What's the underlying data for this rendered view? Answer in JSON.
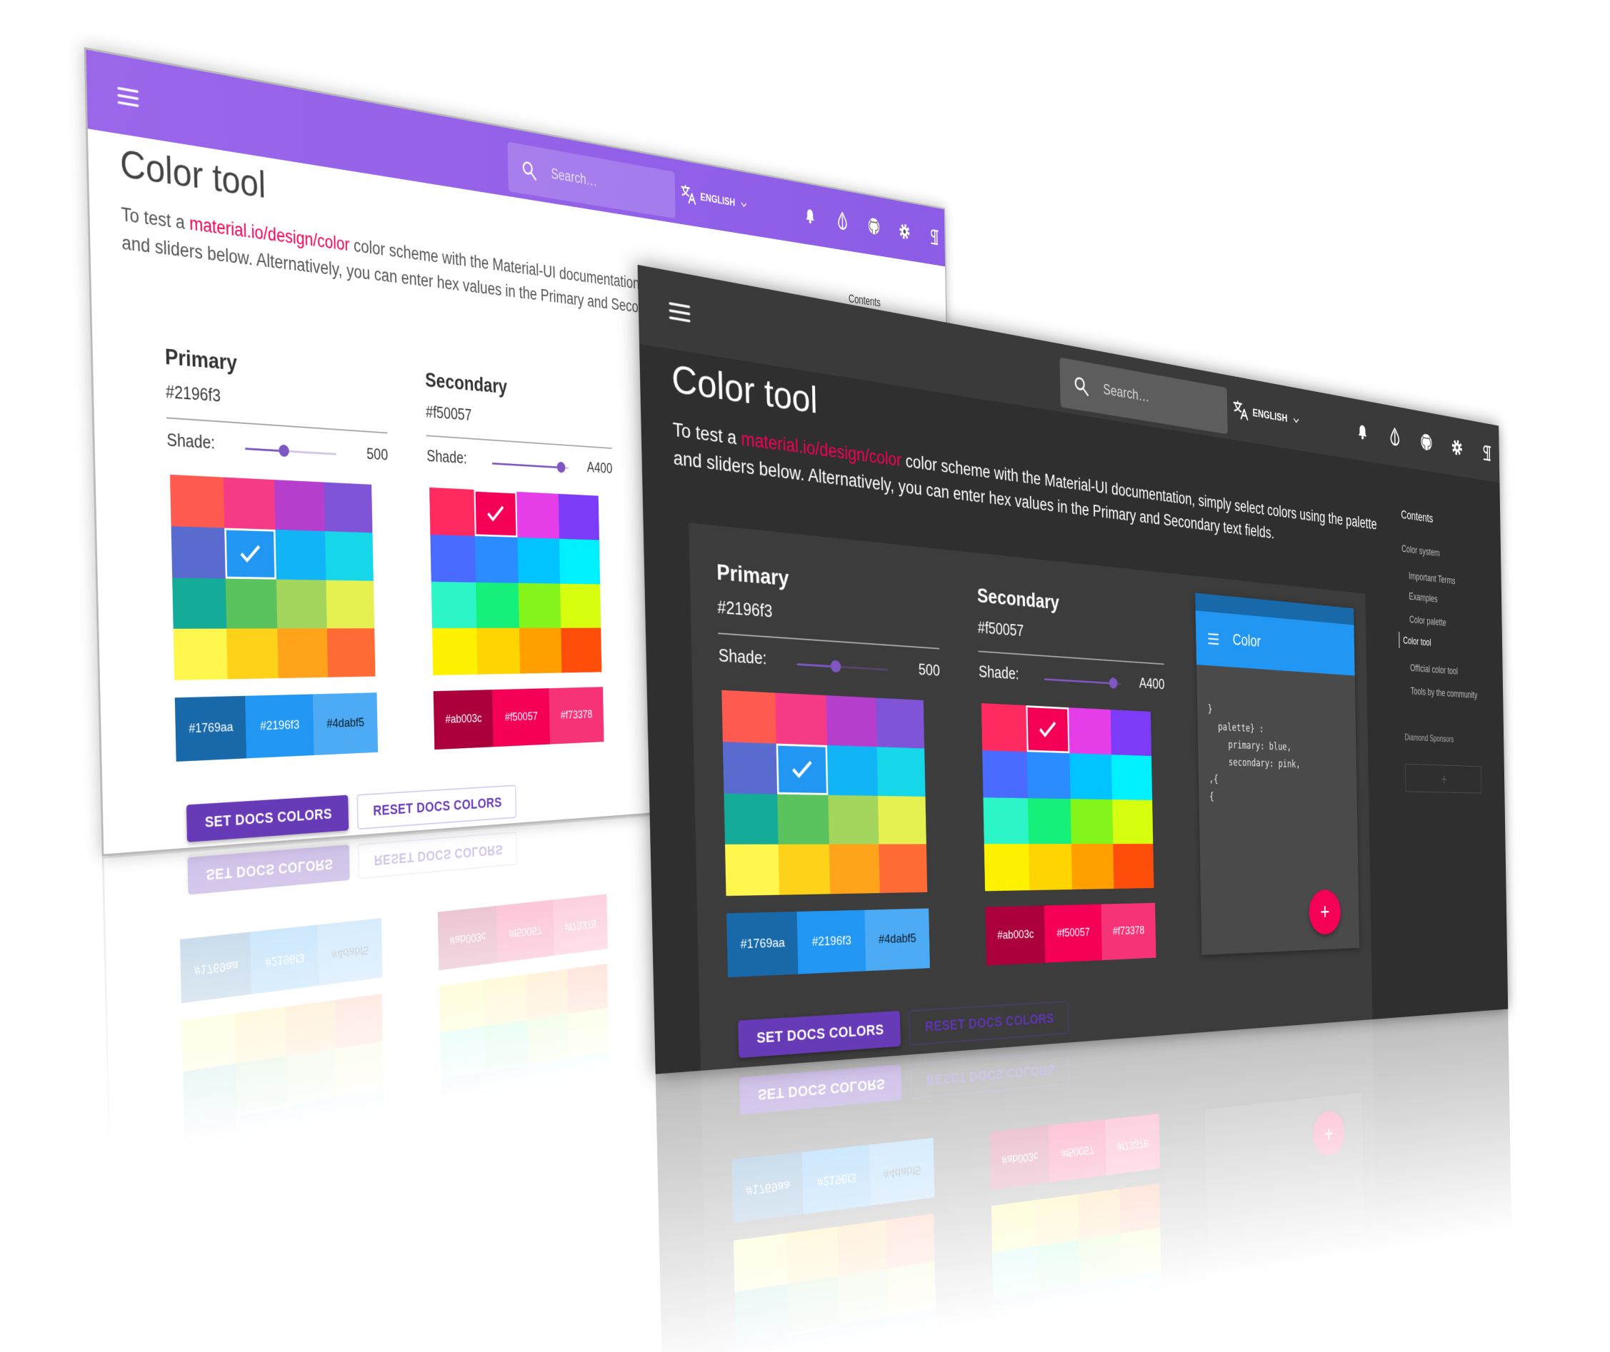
{
  "appbar": {
    "search_placeholder": "Search…",
    "language": "ENGLISH"
  },
  "title": "Color tool",
  "intro": {
    "before": "To test a ",
    "link": "material.io/design/color",
    "after": " color scheme with the Material-UI documentation, simply select colors using the palette and sliders below. Alternatively, you can enter hex values in the Primary and Secondary text fields."
  },
  "primary": {
    "label": "Primary",
    "hex": "#2196f3",
    "shade_label": "Shade:",
    "shade": 500,
    "swatches": [
      "#1769aa",
      "#2196f3",
      "#4dabf5"
    ]
  },
  "secondary": {
    "label": "Secondary",
    "hex": "#f50057",
    "shade_label": "Shade:",
    "shade": "A400",
    "swatches": [
      "#ab003c",
      "#f50057",
      "#f73378"
    ]
  },
  "preview": {
    "title": "Color",
    "code": [
      "}",
      "palette} :",
      "primary: blue,",
      "secondary: pink,",
      ",{",
      "{"
    ],
    "fab": "+"
  },
  "buttons": [
    "SET DOCS COLORS",
    "RESET DOCS COLORS"
  ],
  "contents": {
    "title": "Contents",
    "items": [
      "Color system",
      "Important Terms",
      "Examples",
      "Color palette",
      "Color tool",
      "Official color tool",
      "Tools by the community"
    ],
    "sponsors": "Diamond Sponsors"
  }
}
